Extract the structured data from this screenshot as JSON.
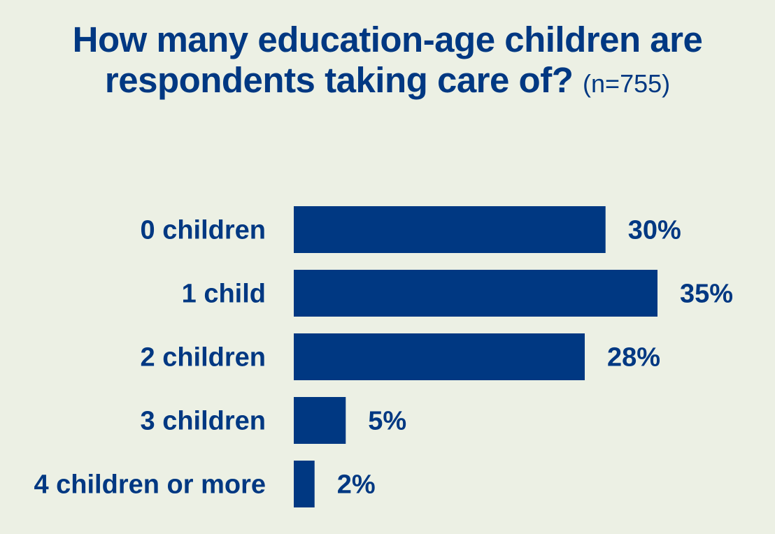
{
  "title": {
    "line1": "How many education-age children are",
    "line2": "respondents taking care of?",
    "sample": "(n=755)"
  },
  "colors": {
    "bar": "#003882",
    "text": "#003882",
    "background": "#ecf0e4"
  },
  "chart_data": {
    "type": "bar",
    "orientation": "horizontal",
    "title": "How many education-age children are respondents taking care of? (n=755)",
    "categories": [
      "0 children",
      "1 child",
      "2 children",
      "3 children",
      "4 children or more"
    ],
    "values": [
      30,
      35,
      28,
      5,
      2
    ],
    "value_labels": [
      "30%",
      "35%",
      "28%",
      "5%",
      "2%"
    ],
    "unit": "%",
    "xlim": [
      0,
      35
    ],
    "grid": false,
    "legend": "none"
  }
}
